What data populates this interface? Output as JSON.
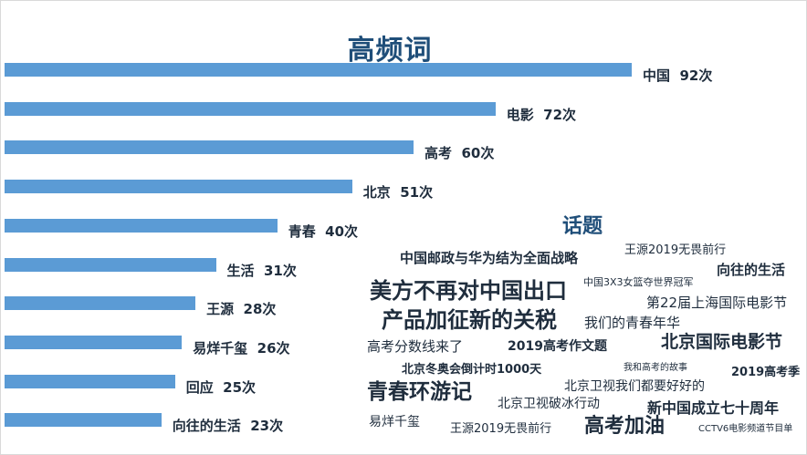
{
  "chart_data": {
    "type": "bar",
    "orientation": "horizontal",
    "title": "高频词",
    "xlabel": "",
    "ylabel": "",
    "xlim": [
      0,
      92
    ],
    "grid": false,
    "categories": [
      "中国",
      "电影",
      "高考",
      "北京",
      "青春",
      "生活",
      "王源",
      "易烊千玺",
      "回应",
      "向往的生活"
    ],
    "values": [
      92,
      72,
      60,
      51,
      40,
      31,
      28,
      26,
      25,
      23
    ],
    "data_labels": [
      "中国  92次",
      "电影  72次",
      "高考  60次",
      "北京  51次",
      "青春  40次",
      "生活  31次",
      "王源  28次",
      "易烊千玺  26次",
      "回应  25次",
      "向往的生活  23次"
    ]
  },
  "topics": {
    "title": "话题",
    "words": [
      "中国邮政与华为结为全面战略",
      "王源2019无畏前行",
      "向往的生活",
      "美方不再对中国出口",
      "中国3X3女篮夺世界冠军",
      "第22届上海国际电影节",
      "产品加征新的关税",
      "我们的青春年华",
      "高考分数线来了",
      "2019高考作文题",
      "北京国际电影节",
      "北京冬奥会倒计时1000天",
      "我和高考的故事",
      "2019高考季",
      "青春环游记",
      "北京卫视我们都要好好的",
      "北京卫视破冰行动",
      "新中国成立七十周年",
      "易烊千玺",
      "王源2019无畏前行",
      "高考加油",
      "CCTV6电影频道节目单"
    ]
  }
}
